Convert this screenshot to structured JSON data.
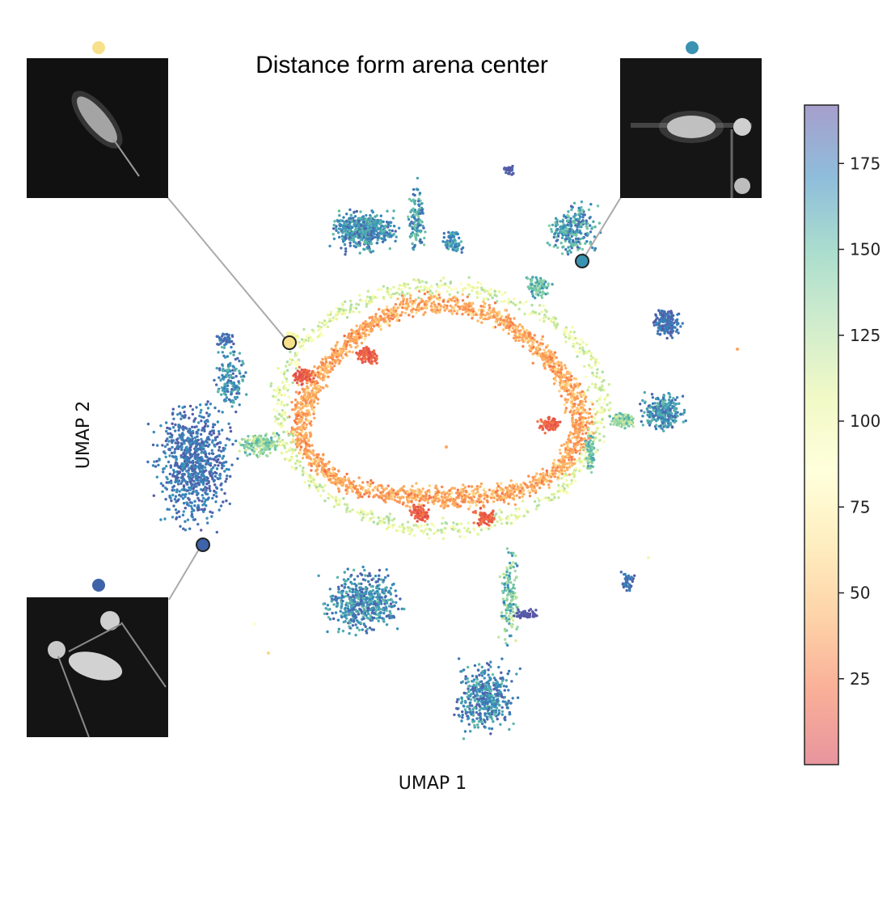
{
  "chart_data": {
    "type": "scatter",
    "title": "Distance form arena center",
    "xlabel": "UMAP 1",
    "ylabel": "UMAP 2",
    "colorbar": {
      "colormap": "Spectral",
      "range": [
        0,
        192
      ],
      "ticks": [
        25,
        50,
        75,
        100,
        125,
        150,
        175
      ]
    },
    "color_stops": [
      "#d53e4f",
      "#f46d43",
      "#fdae61",
      "#fee08b",
      "#ffffbf",
      "#e6f598",
      "#abdda4",
      "#66c2a5",
      "#3288bd",
      "#5e4fa2"
    ],
    "grid": false,
    "legend": "none",
    "highlighted_points": [
      {
        "name": "yellow",
        "distance": 88,
        "inset": "top-left"
      },
      {
        "name": "teal",
        "distance": 160,
        "inset": "top-right"
      },
      {
        "name": "blue",
        "distance": 182,
        "inset": "bottom-left"
      }
    ]
  }
}
